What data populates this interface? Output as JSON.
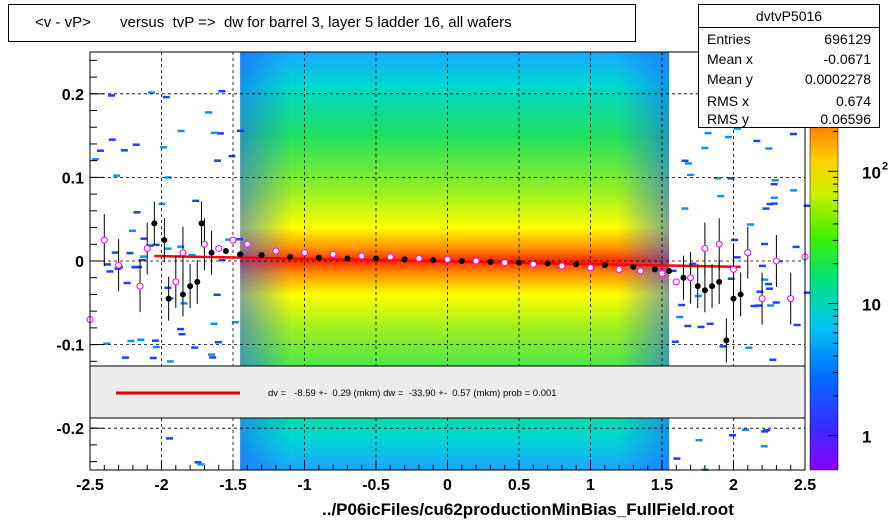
{
  "title": "<v - vP>       versus  tvP =>  dw for barrel 3, layer 5 ladder 16, all wafers",
  "stats": {
    "name": "dvtvP5016",
    "rows": [
      {
        "key": "Entries",
        "value": "696129"
      },
      {
        "key": "Mean x",
        "value": "-0.0671"
      },
      {
        "key": "Mean y",
        "value": "0.0002278"
      },
      {
        "key": "RMS x",
        "value": "0.674"
      },
      {
        "key": "RMS y",
        "value": "0.06596"
      }
    ]
  },
  "fit_text": "dv =   -8.59 +-  0.29 (mkm) dw =  -33.90 +-  0.57 (mkm) prob = 0.001",
  "xfile": "../P06icFiles/cu62productionMinBias_FullField.root",
  "colors": {
    "fit_line": "#ff0000",
    "profile_black": "#000000",
    "profile_magenta": "#ff00ff"
  },
  "chart_data": {
    "type": "heatmap",
    "xlim": [
      -2.5,
      2.5
    ],
    "ylim": [
      -0.25,
      0.25
    ],
    "xticks": [
      "-2.5",
      "-2",
      "-1.5",
      "-1",
      "-0.5",
      "0",
      "0.5",
      "1",
      "1.5",
      "2",
      "2.5"
    ],
    "xtick_values": [
      -2.5,
      -2,
      -1.5,
      -1,
      -0.5,
      0,
      0.5,
      1,
      1.5,
      2,
      2.5
    ],
    "yticks": [
      "0.2",
      "0.1",
      "0",
      "-0.1",
      "-0.2"
    ],
    "ytick_values": [
      0.2,
      0.1,
      0,
      -0.1,
      -0.2
    ],
    "grid": true,
    "z_scale": "log",
    "z_ticks": [
      {
        "label": "1",
        "value": 1
      },
      {
        "label": "10",
        "value": 10
      },
      {
        "label": "10",
        "sup": "2",
        "value": 100
      }
    ],
    "fit_line": {
      "x": [
        -2.05,
        2.05
      ],
      "y": [
        0.006,
        -0.007
      ]
    },
    "profile_black": [
      {
        "x": -2.05,
        "y": 0.045
      },
      {
        "x": -1.98,
        "y": 0.025
      },
      {
        "x": -1.95,
        "y": -0.045
      },
      {
        "x": -1.85,
        "y": -0.04
      },
      {
        "x": -1.8,
        "y": -0.03
      },
      {
        "x": -1.75,
        "y": -0.025
      },
      {
        "x": -1.72,
        "y": 0.045
      },
      {
        "x": -1.65,
        "y": 0.01
      },
      {
        "x": -1.55,
        "y": 0.012
      },
      {
        "x": -1.45,
        "y": 0.008
      },
      {
        "x": -1.3,
        "y": 0.007
      },
      {
        "x": -1.1,
        "y": 0.005
      },
      {
        "x": -0.9,
        "y": 0.004
      },
      {
        "x": -0.7,
        "y": 0.003
      },
      {
        "x": -0.5,
        "y": 0.003
      },
      {
        "x": -0.3,
        "y": 0.002
      },
      {
        "x": -0.1,
        "y": 0.001
      },
      {
        "x": 0.1,
        "y": 0.0
      },
      {
        "x": 0.3,
        "y": -0.001
      },
      {
        "x": 0.5,
        "y": -0.002
      },
      {
        "x": 0.7,
        "y": -0.003
      },
      {
        "x": 0.9,
        "y": -0.004
      },
      {
        "x": 1.1,
        "y": -0.005
      },
      {
        "x": 1.3,
        "y": -0.007
      },
      {
        "x": 1.45,
        "y": -0.01
      },
      {
        "x": 1.55,
        "y": -0.012
      },
      {
        "x": 1.65,
        "y": -0.02
      },
      {
        "x": 1.75,
        "y": -0.03
      },
      {
        "x": 1.8,
        "y": -0.035
      },
      {
        "x": 1.85,
        "y": -0.03
      },
      {
        "x": 1.9,
        "y": -0.025
      },
      {
        "x": 1.95,
        "y": -0.095
      },
      {
        "x": 2.0,
        "y": -0.045
      },
      {
        "x": 2.05,
        "y": -0.04
      }
    ],
    "profile_magenta": [
      {
        "x": -2.5,
        "y": -0.07
      },
      {
        "x": -2.4,
        "y": 0.025
      },
      {
        "x": -2.3,
        "y": -0.005
      },
      {
        "x": -2.15,
        "y": -0.03
      },
      {
        "x": -2.1,
        "y": 0.015
      },
      {
        "x": -1.9,
        "y": -0.025
      },
      {
        "x": -1.85,
        "y": 0.01
      },
      {
        "x": -1.7,
        "y": 0.02
      },
      {
        "x": -1.6,
        "y": 0.015
      },
      {
        "x": -1.5,
        "y": 0.025
      },
      {
        "x": -1.4,
        "y": 0.02
      },
      {
        "x": -1.2,
        "y": 0.012
      },
      {
        "x": -1.0,
        "y": 0.01
      },
      {
        "x": -0.8,
        "y": 0.008
      },
      {
        "x": -0.6,
        "y": 0.006
      },
      {
        "x": -0.4,
        "y": 0.005
      },
      {
        "x": -0.2,
        "y": 0.003
      },
      {
        "x": 0.0,
        "y": 0.002
      },
      {
        "x": 0.2,
        "y": 0.0
      },
      {
        "x": 0.4,
        "y": -0.002
      },
      {
        "x": 0.6,
        "y": -0.004
      },
      {
        "x": 0.8,
        "y": -0.006
      },
      {
        "x": 1.0,
        "y": -0.008
      },
      {
        "x": 1.2,
        "y": -0.01
      },
      {
        "x": 1.35,
        "y": -0.012
      },
      {
        "x": 1.5,
        "y": -0.015
      },
      {
        "x": 1.6,
        "y": -0.025
      },
      {
        "x": 1.7,
        "y": -0.02
      },
      {
        "x": 1.8,
        "y": 0.015
      },
      {
        "x": 1.9,
        "y": 0.02
      },
      {
        "x": 2.0,
        "y": -0.01
      },
      {
        "x": 2.1,
        "y": 0.01
      },
      {
        "x": 2.2,
        "y": -0.045
      },
      {
        "x": 2.3,
        "y": 0.0
      },
      {
        "x": 2.4,
        "y": -0.045
      },
      {
        "x": 2.5,
        "y": 0.005
      }
    ]
  }
}
